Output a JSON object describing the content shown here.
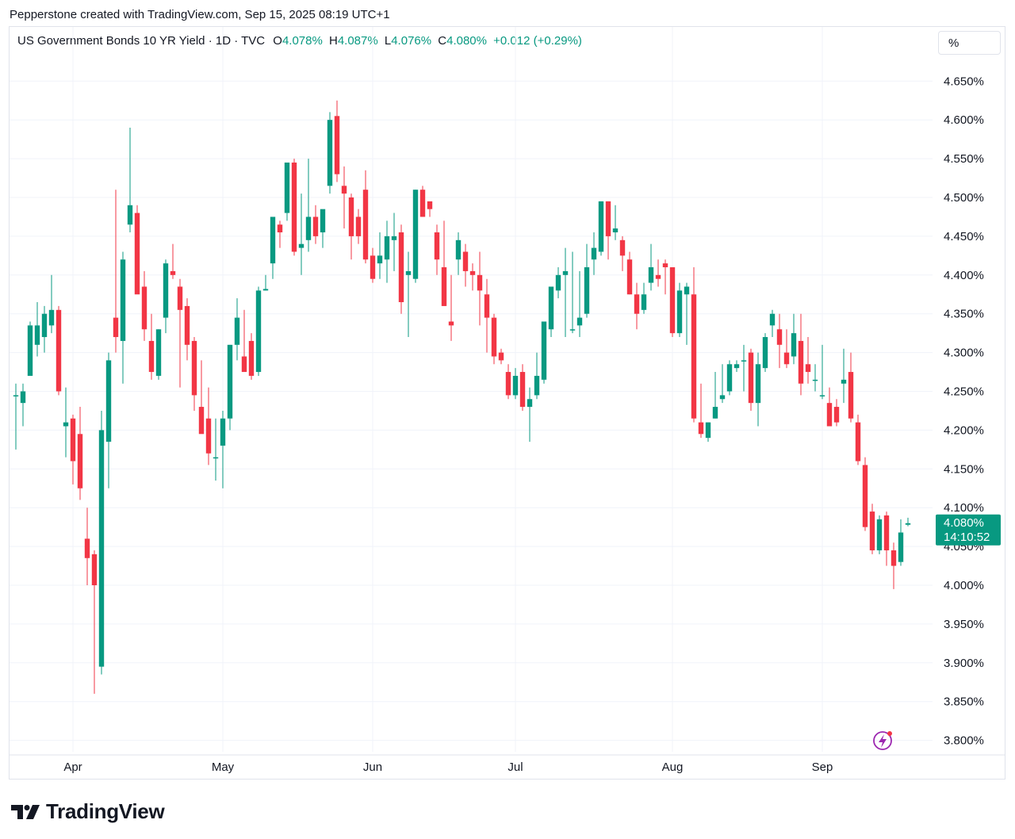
{
  "credit": "Pepperstone created with TradingView.com, Sep 15, 2025 08:19 UTC+1",
  "legend": {
    "title": "US Government Bonds 10 YR Yield · 1D · TVC",
    "o_key": "O",
    "o_val": "4.078%",
    "h_key": "H",
    "h_val": "4.087%",
    "l_key": "L",
    "l_val": "4.076%",
    "c_key": "C",
    "c_val": "4.080%",
    "change": "+0.012 (+0.29%)"
  },
  "scale_button": "%",
  "price_badge": {
    "value": "4.080%",
    "countdown": "14:10:52"
  },
  "brand": "TradingView",
  "colors": {
    "up": "#089981",
    "down": "#f23645",
    "grid": "#f0f3fa",
    "text": "#131722"
  },
  "chart_data": {
    "type": "candlestick",
    "ylim": [
      3.78,
      4.685
    ],
    "yticks": [
      "4.650%",
      "4.600%",
      "4.550%",
      "4.500%",
      "4.450%",
      "4.400%",
      "4.350%",
      "4.300%",
      "4.250%",
      "4.200%",
      "4.150%",
      "4.100%",
      "4.050%",
      "4.000%",
      "3.950%",
      "3.900%",
      "3.850%",
      "3.800%"
    ],
    "ytick_values": [
      4.65,
      4.6,
      4.55,
      4.5,
      4.45,
      4.4,
      4.35,
      4.3,
      4.25,
      4.2,
      4.15,
      4.1,
      4.05,
      4.0,
      3.95,
      3.9,
      3.85,
      3.8
    ],
    "xticks": [
      {
        "label": "Apr",
        "index": 8
      },
      {
        "label": "May",
        "index": 29
      },
      {
        "label": "Jun",
        "index": 50
      },
      {
        "label": "Jul",
        "index": 70
      },
      {
        "label": "Aug",
        "index": 92
      },
      {
        "label": "Sep",
        "index": 113
      }
    ],
    "last_price": 4.08,
    "candles": [
      {
        "o": 4.245,
        "h": 4.26,
        "l": 4.175,
        "c": 4.245
      },
      {
        "o": 4.235,
        "h": 4.26,
        "l": 4.205,
        "c": 4.25
      },
      {
        "o": 4.27,
        "h": 4.34,
        "l": 4.27,
        "c": 4.335
      },
      {
        "o": 4.31,
        "h": 4.365,
        "l": 4.295,
        "c": 4.335
      },
      {
        "o": 4.32,
        "h": 4.36,
        "l": 4.3,
        "c": 4.35
      },
      {
        "o": 4.335,
        "h": 4.4,
        "l": 4.325,
        "c": 4.355
      },
      {
        "o": 4.355,
        "h": 4.36,
        "l": 4.245,
        "c": 4.25
      },
      {
        "o": 4.205,
        "h": 4.255,
        "l": 4.165,
        "c": 4.21
      },
      {
        "o": 4.215,
        "h": 4.22,
        "l": 4.13,
        "c": 4.16
      },
      {
        "o": 4.195,
        "h": 4.23,
        "l": 4.11,
        "c": 4.125
      },
      {
        "o": 4.06,
        "h": 4.1,
        "l": 4.0,
        "c": 4.035
      },
      {
        "o": 4.04,
        "h": 4.045,
        "l": 3.86,
        "c": 4.0
      },
      {
        "o": 3.895,
        "h": 4.225,
        "l": 3.885,
        "c": 4.2
      },
      {
        "o": 4.185,
        "h": 4.3,
        "l": 4.125,
        "c": 4.29
      },
      {
        "o": 4.345,
        "h": 4.51,
        "l": 4.3,
        "c": 4.32
      },
      {
        "o": 4.315,
        "h": 4.43,
        "l": 4.26,
        "c": 4.42
      },
      {
        "o": 4.465,
        "h": 4.59,
        "l": 4.455,
        "c": 4.49
      },
      {
        "o": 4.48,
        "h": 4.49,
        "l": 4.38,
        "c": 4.375
      },
      {
        "o": 4.385,
        "h": 4.405,
        "l": 4.315,
        "c": 4.33
      },
      {
        "o": 4.315,
        "h": 4.35,
        "l": 4.265,
        "c": 4.275
      },
      {
        "o": 4.27,
        "h": 4.33,
        "l": 4.265,
        "c": 4.33
      },
      {
        "o": 4.345,
        "h": 4.42,
        "l": 4.325,
        "c": 4.415
      },
      {
        "o": 4.405,
        "h": 4.44,
        "l": 4.395,
        "c": 4.4
      },
      {
        "o": 4.385,
        "h": 4.395,
        "l": 4.255,
        "c": 4.355
      },
      {
        "o": 4.36,
        "h": 4.37,
        "l": 4.29,
        "c": 4.31
      },
      {
        "o": 4.315,
        "h": 4.32,
        "l": 4.225,
        "c": 4.245
      },
      {
        "o": 4.23,
        "h": 4.29,
        "l": 4.2,
        "c": 4.195
      },
      {
        "o": 4.215,
        "h": 4.255,
        "l": 4.155,
        "c": 4.17
      },
      {
        "o": 4.165,
        "h": 4.215,
        "l": 4.135,
        "c": 4.165
      },
      {
        "o": 4.18,
        "h": 4.225,
        "l": 4.125,
        "c": 4.215
      },
      {
        "o": 4.215,
        "h": 4.31,
        "l": 4.2,
        "c": 4.31
      },
      {
        "o": 4.31,
        "h": 4.37,
        "l": 4.29,
        "c": 4.345
      },
      {
        "o": 4.295,
        "h": 4.355,
        "l": 4.275,
        "c": 4.275
      },
      {
        "o": 4.315,
        "h": 4.325,
        "l": 4.265,
        "c": 4.27
      },
      {
        "o": 4.275,
        "h": 4.385,
        "l": 4.27,
        "c": 4.38
      },
      {
        "o": 4.38,
        "h": 4.4,
        "l": 4.38,
        "c": 4.382
      },
      {
        "o": 4.415,
        "h": 4.475,
        "l": 4.395,
        "c": 4.475
      },
      {
        "o": 4.465,
        "h": 4.47,
        "l": 4.435,
        "c": 4.455
      },
      {
        "o": 4.48,
        "h": 4.545,
        "l": 4.47,
        "c": 4.545
      },
      {
        "o": 4.545,
        "h": 4.55,
        "l": 4.425,
        "c": 4.43
      },
      {
        "o": 4.435,
        "h": 4.505,
        "l": 4.4,
        "c": 4.44
      },
      {
        "o": 4.445,
        "h": 4.55,
        "l": 4.43,
        "c": 4.475
      },
      {
        "o": 4.475,
        "h": 4.49,
        "l": 4.44,
        "c": 4.45
      },
      {
        "o": 4.455,
        "h": 4.48,
        "l": 4.435,
        "c": 4.485
      },
      {
        "o": 4.515,
        "h": 4.61,
        "l": 4.505,
        "c": 4.6
      },
      {
        "o": 4.605,
        "h": 4.625,
        "l": 4.52,
        "c": 4.53
      },
      {
        "o": 4.515,
        "h": 4.54,
        "l": 4.46,
        "c": 4.505
      },
      {
        "o": 4.5,
        "h": 4.505,
        "l": 4.42,
        "c": 4.45
      },
      {
        "o": 4.475,
        "h": 4.485,
        "l": 4.44,
        "c": 4.45
      },
      {
        "o": 4.51,
        "h": 4.535,
        "l": 4.415,
        "c": 4.42
      },
      {
        "o": 4.425,
        "h": 4.435,
        "l": 4.39,
        "c": 4.395
      },
      {
        "o": 4.415,
        "h": 4.455,
        "l": 4.395,
        "c": 4.425
      },
      {
        "o": 4.42,
        "h": 4.47,
        "l": 4.39,
        "c": 4.45
      },
      {
        "o": 4.445,
        "h": 4.48,
        "l": 4.405,
        "c": 4.45
      },
      {
        "o": 4.455,
        "h": 4.465,
        "l": 4.35,
        "c": 4.365
      },
      {
        "o": 4.4,
        "h": 4.43,
        "l": 4.32,
        "c": 4.405
      },
      {
        "o": 4.395,
        "h": 4.51,
        "l": 4.39,
        "c": 4.51
      },
      {
        "o": 4.51,
        "h": 4.515,
        "l": 4.475,
        "c": 4.475
      },
      {
        "o": 4.495,
        "h": 4.49,
        "l": 4.475,
        "c": 4.485
      },
      {
        "o": 4.455,
        "h": 4.465,
        "l": 4.4,
        "c": 4.42
      },
      {
        "o": 4.41,
        "h": 4.47,
        "l": 4.36,
        "c": 4.36
      },
      {
        "o": 4.34,
        "h": 4.4,
        "l": 4.315,
        "c": 4.335
      },
      {
        "o": 4.42,
        "h": 4.455,
        "l": 4.4,
        "c": 4.445
      },
      {
        "o": 4.43,
        "h": 4.44,
        "l": 4.385,
        "c": 4.405
      },
      {
        "o": 4.405,
        "h": 4.415,
        "l": 4.38,
        "c": 4.4
      },
      {
        "o": 4.4,
        "h": 4.43,
        "l": 4.335,
        "c": 4.38
      },
      {
        "o": 4.375,
        "h": 4.395,
        "l": 4.3,
        "c": 4.345
      },
      {
        "o": 4.345,
        "h": 4.35,
        "l": 4.285,
        "c": 4.295
      },
      {
        "o": 4.3,
        "h": 4.305,
        "l": 4.285,
        "c": 4.29
      },
      {
        "o": 4.275,
        "h": 4.285,
        "l": 4.24,
        "c": 4.245
      },
      {
        "o": 4.245,
        "h": 4.28,
        "l": 4.24,
        "c": 4.27
      },
      {
        "o": 4.275,
        "h": 4.285,
        "l": 4.225,
        "c": 4.23
      },
      {
        "o": 4.23,
        "h": 4.255,
        "l": 4.185,
        "c": 4.24
      },
      {
        "o": 4.245,
        "h": 4.3,
        "l": 4.24,
        "c": 4.27
      },
      {
        "o": 4.265,
        "h": 4.34,
        "l": 4.26,
        "c": 4.34
      },
      {
        "o": 4.33,
        "h": 4.385,
        "l": 4.32,
        "c": 4.385
      },
      {
        "o": 4.38,
        "h": 4.41,
        "l": 4.37,
        "c": 4.4
      },
      {
        "o": 4.4,
        "h": 4.435,
        "l": 4.32,
        "c": 4.405
      },
      {
        "o": 4.33,
        "h": 4.43,
        "l": 4.325,
        "c": 4.33
      },
      {
        "o": 4.335,
        "h": 4.405,
        "l": 4.32,
        "c": 4.345
      },
      {
        "o": 4.35,
        "h": 4.44,
        "l": 4.345,
        "c": 4.41
      },
      {
        "o": 4.42,
        "h": 4.455,
        "l": 4.4,
        "c": 4.435
      },
      {
        "o": 4.43,
        "h": 4.495,
        "l": 4.425,
        "c": 4.495
      },
      {
        "o": 4.495,
        "h": 4.495,
        "l": 4.42,
        "c": 4.45
      },
      {
        "o": 4.455,
        "h": 4.49,
        "l": 4.445,
        "c": 4.46
      },
      {
        "o": 4.445,
        "h": 4.45,
        "l": 4.405,
        "c": 4.425
      },
      {
        "o": 4.42,
        "h": 4.43,
        "l": 4.375,
        "c": 4.375
      },
      {
        "o": 4.375,
        "h": 4.39,
        "l": 4.33,
        "c": 4.35
      },
      {
        "o": 4.355,
        "h": 4.39,
        "l": 4.35,
        "c": 4.375
      },
      {
        "o": 4.39,
        "h": 4.44,
        "l": 4.38,
        "c": 4.41
      },
      {
        "o": 4.4,
        "h": 4.42,
        "l": 4.385,
        "c": 4.395
      },
      {
        "o": 4.415,
        "h": 4.42,
        "l": 4.375,
        "c": 4.41
      },
      {
        "o": 4.41,
        "h": 4.41,
        "l": 4.32,
        "c": 4.325
      },
      {
        "o": 4.325,
        "h": 4.39,
        "l": 4.32,
        "c": 4.38
      },
      {
        "o": 4.375,
        "h": 4.39,
        "l": 4.31,
        "c": 4.385
      },
      {
        "o": 4.375,
        "h": 4.41,
        "l": 4.21,
        "c": 4.215
      },
      {
        "o": 4.21,
        "h": 4.26,
        "l": 4.19,
        "c": 4.195
      },
      {
        "o": 4.19,
        "h": 4.21,
        "l": 4.185,
        "c": 4.21
      },
      {
        "o": 4.215,
        "h": 4.275,
        "l": 4.215,
        "c": 4.23
      },
      {
        "o": 4.24,
        "h": 4.285,
        "l": 4.235,
        "c": 4.245
      },
      {
        "o": 4.25,
        "h": 4.29,
        "l": 4.245,
        "c": 4.285
      },
      {
        "o": 4.28,
        "h": 4.29,
        "l": 4.275,
        "c": 4.285
      },
      {
        "o": 4.29,
        "h": 4.31,
        "l": 4.25,
        "c": 4.29
      },
      {
        "o": 4.3,
        "h": 4.305,
        "l": 4.225,
        "c": 4.235
      },
      {
        "o": 4.235,
        "h": 4.3,
        "l": 4.205,
        "c": 4.285
      },
      {
        "o": 4.28,
        "h": 4.325,
        "l": 4.275,
        "c": 4.32
      },
      {
        "o": 4.335,
        "h": 4.355,
        "l": 4.32,
        "c": 4.35
      },
      {
        "o": 4.33,
        "h": 4.35,
        "l": 4.28,
        "c": 4.31
      },
      {
        "o": 4.3,
        "h": 4.33,
        "l": 4.28,
        "c": 4.285
      },
      {
        "o": 4.295,
        "h": 4.35,
        "l": 4.285,
        "c": 4.325
      },
      {
        "o": 4.315,
        "h": 4.35,
        "l": 4.245,
        "c": 4.26
      },
      {
        "o": 4.285,
        "h": 4.32,
        "l": 4.26,
        "c": 4.275
      },
      {
        "o": 4.265,
        "h": 4.285,
        "l": 4.25,
        "c": 4.265
      },
      {
        "o": 4.245,
        "h": 4.31,
        "l": 4.24,
        "c": 4.245
      },
      {
        "o": 4.235,
        "h": 4.255,
        "l": 4.205,
        "c": 4.205
      },
      {
        "o": 4.23,
        "h": 4.24,
        "l": 4.205,
        "c": 4.21
      },
      {
        "o": 4.26,
        "h": 4.305,
        "l": 4.235,
        "c": 4.265
      },
      {
        "o": 4.275,
        "h": 4.3,
        "l": 4.21,
        "c": 4.215
      },
      {
        "o": 4.21,
        "h": 4.22,
        "l": 4.155,
        "c": 4.16
      },
      {
        "o": 4.155,
        "h": 4.165,
        "l": 4.07,
        "c": 4.075
      },
      {
        "o": 4.095,
        "h": 4.105,
        "l": 4.04,
        "c": 4.045
      },
      {
        "o": 4.045,
        "h": 4.09,
        "l": 4.04,
        "c": 4.085
      },
      {
        "o": 4.09,
        "h": 4.095,
        "l": 4.025,
        "c": 4.045
      },
      {
        "o": 4.045,
        "h": 4.055,
        "l": 3.995,
        "c": 4.025
      },
      {
        "o": 4.03,
        "h": 4.085,
        "l": 4.025,
        "c": 4.068
      },
      {
        "o": 4.078,
        "h": 4.087,
        "l": 4.076,
        "c": 4.08
      }
    ]
  }
}
